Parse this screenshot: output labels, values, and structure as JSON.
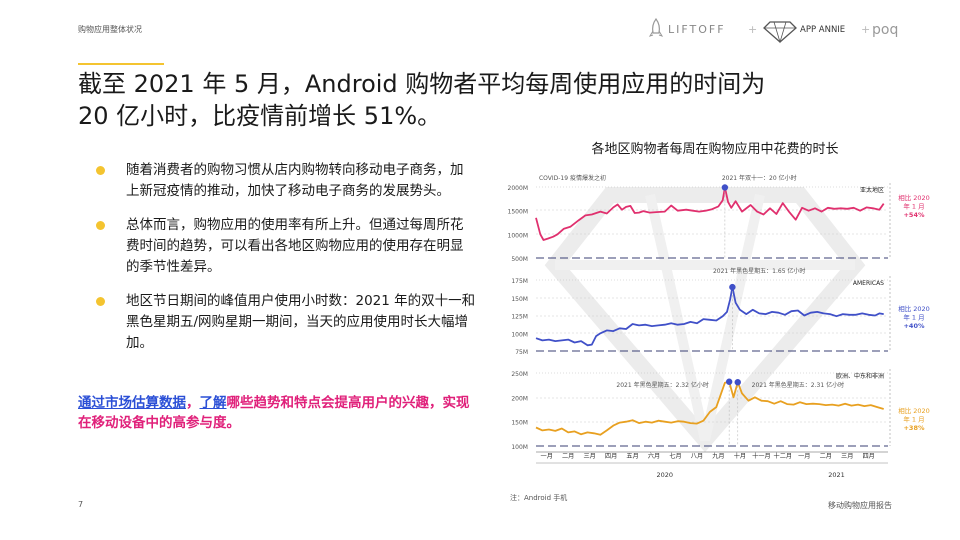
{
  "breadcrumb": "购物应用整体状况",
  "logos": {
    "liftoff": "LIFTOFF",
    "plus": "+",
    "appannie": "APP ANNIE",
    "poq": "poq"
  },
  "headline": {
    "line1": "截至 2021 年 5 月，Android 购物者平均每周使用应用的时间为",
    "line2": "20 亿小时，比疫情前增长 51%。"
  },
  "bullets": [
    "随着消费者的购物习惯从店内购物转向移动电子商务，加上新冠疫情的推动，加快了移动电子商务的发展势头。",
    "总体而言，购物应用的使用率有所上升。但通过每周所花费时间的趋势，可以看出各地区购物应用的使用存在明显的季节性差异。",
    "地区节日期间的峰值用户使用小时数：2021 年的双十一和黑色星期五/网购星期一期间，当天的应用使用时长大幅增加。"
  ],
  "callout": {
    "link1": "通过市场估算数据",
    "sep": "，",
    "link2": "了解",
    "rest": "哪些趋势和特点会提高用户的兴趣，实现在移动设备中的高参与度。"
  },
  "page_number": "7",
  "footnote": "注：Android 手机",
  "footer": "移动购物应用报告",
  "colors": {
    "apac": "#e0306e",
    "americas": "#4050c8",
    "emea": "#e8a020",
    "accent_yellow": "#f4c430",
    "callout_pink": "#e0207a",
    "link_blue": "#2b4fd6"
  },
  "chart_data": {
    "type": "line",
    "title": "各地区购物者每周在购物应用中花费的时长",
    "x_tick_labels": [
      "一月",
      "二月",
      "三月",
      "四月",
      "五月",
      "六月",
      "七月",
      "八月",
      "九月",
      "十月",
      "十一月",
      "十二月",
      "一月",
      "二月",
      "三月",
      "四月"
    ],
    "x_years": [
      "2020",
      "2021"
    ],
    "x_range_months": [
      0,
      16.4
    ],
    "panels": [
      {
        "name": "亚太地区",
        "y_ticks": [
          "2000M",
          "1500M",
          "1000M",
          "500M"
        ],
        "y_tick_values": [
          2000,
          1500,
          1000,
          500
        ],
        "ylim": [
          500,
          2000
        ],
        "change_label": [
          "相比 2020",
          "年 1 月",
          "+54%"
        ],
        "annotations": [
          {
            "text": "COVID-19 疫情爆发之初",
            "x": 1.7
          },
          {
            "text": "2021 年双十一：20 亿小时",
            "x": 10.4
          }
        ],
        "peak_markers": [
          {
            "x": 8.8,
            "y": 1990
          }
        ],
        "x": [
          0,
          0.2,
          0.35,
          0.55,
          0.8,
          1,
          1.3,
          1.6,
          2,
          2.3,
          2.6,
          3,
          3.3,
          3.6,
          3.8,
          4,
          4.2,
          4.4,
          4.6,
          4.8,
          5,
          5.3,
          5.6,
          6,
          6.3,
          6.6,
          7,
          7.3,
          7.6,
          7.9,
          8.2,
          8.5,
          8.7,
          8.8,
          8.95,
          9.1,
          9.3,
          9.6,
          10,
          10.3,
          10.6,
          10.9,
          11.2,
          11.5,
          11.8,
          12.1,
          12.4,
          12.7,
          13,
          13.3,
          13.6,
          13.9,
          14.2,
          14.5,
          14.8,
          15.1,
          15.4,
          15.7,
          16,
          16.2
        ],
        "values": [
          1350,
          1000,
          880,
          910,
          950,
          1000,
          1120,
          1160,
          1300,
          1400,
          1420,
          1480,
          1440,
          1570,
          1630,
          1520,
          1580,
          1600,
          1450,
          1460,
          1490,
          1460,
          1470,
          1480,
          1610,
          1500,
          1520,
          1500,
          1480,
          1500,
          1530,
          1590,
          1720,
          1990,
          1680,
          1560,
          1700,
          1480,
          1620,
          1480,
          1420,
          1550,
          1430,
          1660,
          1470,
          1310,
          1560,
          1500,
          1550,
          1480,
          1560,
          1540,
          1550,
          1540,
          1560,
          1500,
          1570,
          1550,
          1520,
          1650
        ]
      },
      {
        "name": "AMERICAS",
        "y_ticks": [
          "175M",
          "150M",
          "125M",
          "100M",
          "75M"
        ],
        "y_tick_values": [
          175,
          150,
          125,
          100,
          75
        ],
        "ylim": [
          75,
          175
        ],
        "change_label": [
          "相比 2020",
          "年 1 月",
          "+40%"
        ],
        "annotations": [
          {
            "text": "2021 年黑色星期五：1.65 亿小时",
            "x": 10.4
          }
        ],
        "peak_markers": [
          {
            "x": 9.15,
            "y": 165
          }
        ],
        "x": [
          0,
          0.3,
          0.6,
          0.9,
          1.2,
          1.5,
          1.8,
          2.1,
          2.4,
          2.6,
          2.8,
          3,
          3.3,
          3.6,
          3.9,
          4.2,
          4.5,
          4.8,
          5.1,
          5.4,
          5.7,
          6,
          6.3,
          6.6,
          6.9,
          7.2,
          7.5,
          7.8,
          8.1,
          8.4,
          8.7,
          8.9,
          9.05,
          9.15,
          9.3,
          9.5,
          9.8,
          10.1,
          10.4,
          10.7,
          11,
          11.3,
          11.6,
          11.9,
          12.2,
          12.5,
          12.8,
          13.1,
          13.4,
          13.7,
          14,
          14.3,
          14.6,
          14.9,
          15.2,
          15.5,
          15.8,
          16,
          16.2
        ],
        "values": [
          93,
          90,
          91,
          89,
          90,
          91,
          87,
          89,
          83,
          84,
          96,
          100,
          104,
          103,
          107,
          106,
          113,
          111,
          112,
          110,
          111,
          112,
          114,
          112,
          113,
          116,
          114,
          120,
          119,
          118,
          124,
          130,
          148,
          165,
          143,
          133,
          127,
          133,
          128,
          127,
          130,
          129,
          126,
          131,
          132,
          125,
          129,
          130,
          128,
          127,
          124,
          127,
          126,
          126,
          128,
          126,
          125,
          128,
          127
        ]
      },
      {
        "name": "欧洲、中东和非洲",
        "y_ticks": [
          "250M",
          "200M",
          "150M",
          "100M"
        ],
        "y_tick_values": [
          250,
          200,
          150,
          100
        ],
        "ylim": [
          100,
          250
        ],
        "change_label": [
          "相比 2020",
          "年 1 月",
          "+38%"
        ],
        "annotations": [
          {
            "text": "2021 年黑色星期五：2.32 亿小时",
            "x": 5.9
          },
          {
            "text": "2021 年黑色星期五：2.31 亿小时",
            "x": 12.2
          }
        ],
        "peak_markers": [
          {
            "x": 9.0,
            "y": 232
          },
          {
            "x": 9.4,
            "y": 231
          }
        ],
        "x": [
          0,
          0.3,
          0.6,
          0.9,
          1.2,
          1.5,
          1.8,
          2.1,
          2.4,
          2.7,
          3,
          3.3,
          3.6,
          3.9,
          4.2,
          4.5,
          4.8,
          5.1,
          5.4,
          5.7,
          6,
          6.3,
          6.6,
          6.9,
          7.2,
          7.5,
          7.8,
          8.1,
          8.4,
          8.6,
          8.8,
          9,
          9.2,
          9.4,
          9.6,
          9.9,
          10.2,
          10.5,
          10.8,
          11.1,
          11.4,
          11.7,
          12,
          12.3,
          12.6,
          12.9,
          13.2,
          13.5,
          13.8,
          14.1,
          14.4,
          14.7,
          15,
          15.3,
          15.6,
          15.9,
          16.2
        ],
        "values": [
          138,
          132,
          134,
          131,
          136,
          128,
          130,
          124,
          128,
          126,
          123,
          132,
          142,
          148,
          150,
          153,
          147,
          150,
          148,
          152,
          150,
          148,
          151,
          150,
          147,
          146,
          152,
          170,
          180,
          205,
          230,
          232,
          200,
          231,
          208,
          193,
          200,
          193,
          192,
          187,
          192,
          186,
          185,
          190,
          186,
          187,
          186,
          184,
          185,
          183,
          187,
          183,
          185,
          182,
          184,
          180,
          176
        ]
      }
    ]
  }
}
